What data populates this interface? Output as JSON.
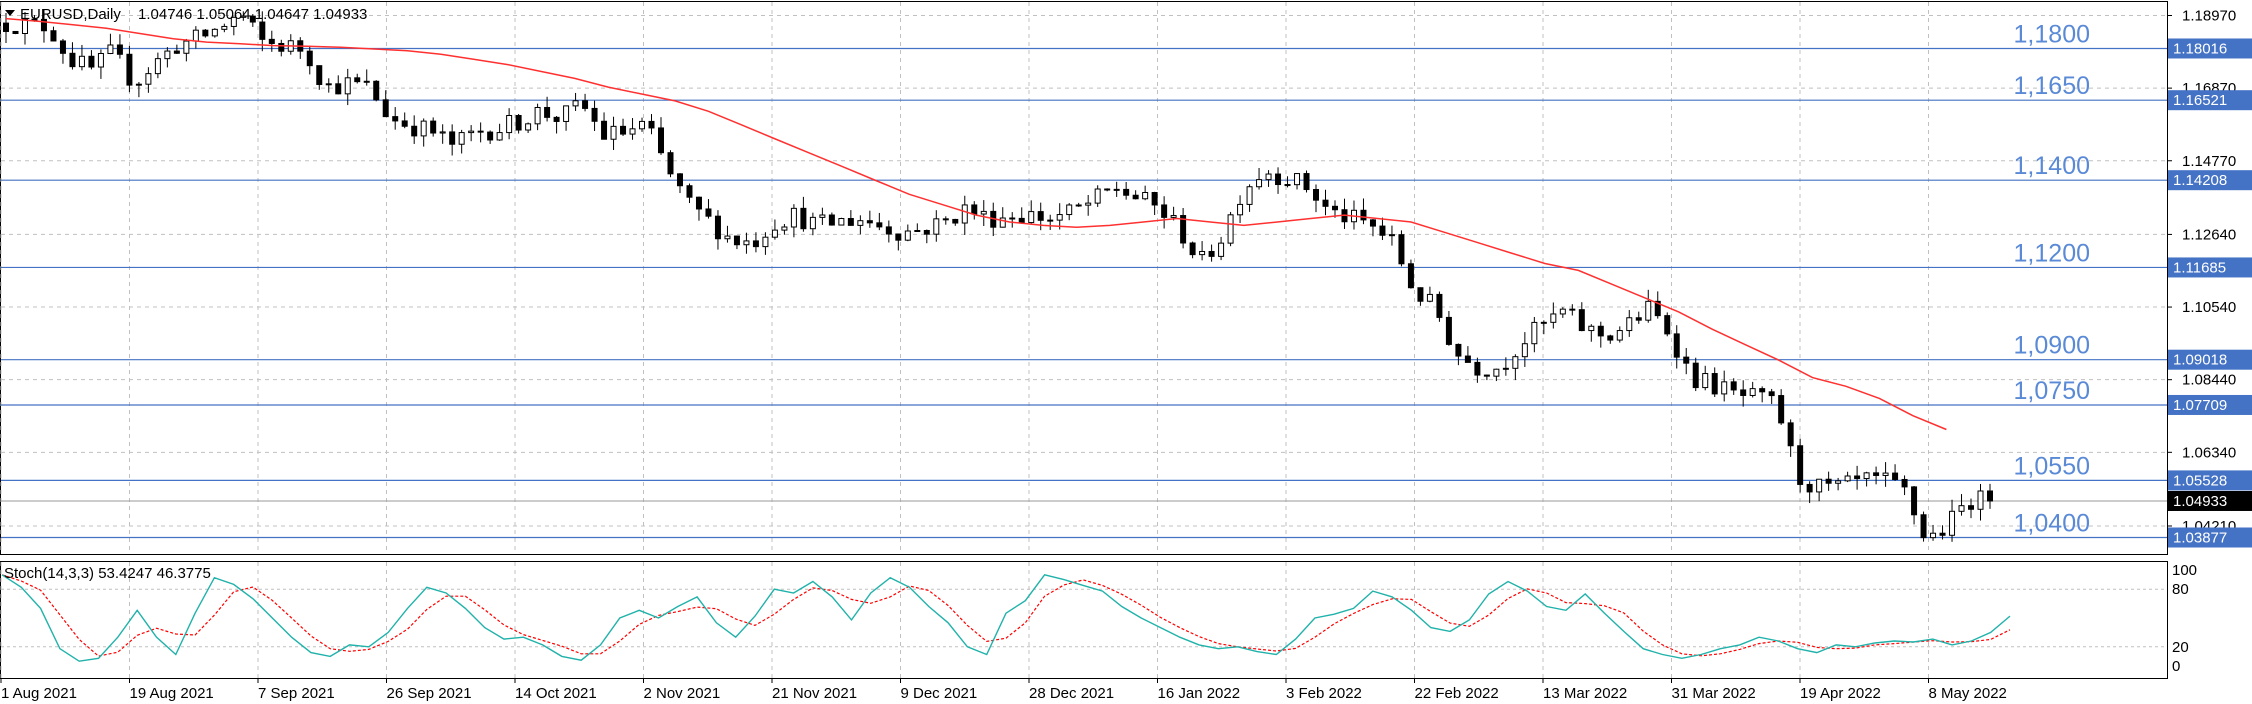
{
  "header": {
    "symbol_line": "EURUSD,Daily",
    "ohlc": "1.04746 1.05064 1.04647 1.04933",
    "menu_icon": "triangle-down-icon"
  },
  "indicator": {
    "label": "Stoch(14,3,3) 53.4247 46.3775",
    "main_color": "#20b2aa",
    "signal_color": "#ff0000",
    "ticks": [
      "100",
      "80",
      "20",
      "0"
    ],
    "levels": [
      80,
      20
    ]
  },
  "colors": {
    "level_line": "#4472c4",
    "level_text": "#5a8ad6",
    "ma_line": "#ff3030",
    "price_tag_bg": "#000000",
    "grid": "#c0c0c0"
  },
  "chart_data": [
    {
      "type": "candlestick",
      "symbol": "EURUSD",
      "timeframe": "Daily",
      "ylim": [
        1.034,
        1.1936
      ],
      "y_tick_labels": [
        "1.18970",
        "1.16870",
        "1.14770",
        "1.12640",
        "1.10540",
        "1.08440",
        "1.06340",
        "1.04210"
      ],
      "x_tick_labels": [
        "1 Aug 2021",
        "19 Aug 2021",
        "7 Sep 2021",
        "26 Sep 2021",
        "14 Oct 2021",
        "2 Nov 2021",
        "21 Nov 2021",
        "9 Dec 2021",
        "28 Dec 2021",
        "16 Jan 2022",
        "3 Feb 2022",
        "22 Feb 2022",
        "13 Mar 2022",
        "31 Mar 2022",
        "19 Apr 2022",
        "8 May 2022"
      ],
      "grid": true,
      "levels": [
        {
          "value": 1.18016,
          "label": "1,1800",
          "tag": "1.18016"
        },
        {
          "value": 1.16521,
          "label": "1,1650",
          "tag": "1.16521"
        },
        {
          "value": 1.14208,
          "label": "1,1400",
          "tag": "1.14208"
        },
        {
          "value": 1.11685,
          "label": "1,1200",
          "tag": "1.11685"
        },
        {
          "value": 1.09018,
          "label": "1,0900",
          "tag": "1.09018"
        },
        {
          "value": 1.07709,
          "label": "1,0750",
          "tag": "1.07709"
        },
        {
          "value": 1.05528,
          "label": "1,0550",
          "tag": "1.05528"
        },
        {
          "value": 1.03877,
          "label": "1,0400",
          "tag": "1.03877"
        }
      ],
      "current_price": {
        "value": 1.04933,
        "tag": "1.04933"
      },
      "price_path": [
        1.1875,
        1.187,
        1.1866,
        1.177,
        1.174,
        1.179,
        1.17,
        1.176,
        1.181,
        1.183,
        1.186,
        1.19,
        1.182,
        1.181,
        1.18,
        1.169,
        1.17,
        1.169,
        1.16,
        1.158,
        1.156,
        1.152,
        1.156,
        1.157,
        1.159,
        1.162,
        1.16,
        1.164,
        1.155,
        1.156,
        1.158,
        1.145,
        1.135,
        1.13,
        1.125,
        1.124,
        1.13,
        1.132,
        1.129,
        1.13,
        1.131,
        1.129,
        1.127,
        1.128,
        1.13,
        1.134,
        1.131,
        1.132,
        1.132,
        1.131,
        1.133,
        1.136,
        1.14,
        1.137,
        1.134,
        1.128,
        1.118,
        1.126,
        1.14,
        1.145,
        1.143,
        1.14,
        1.133,
        1.131,
        1.129,
        1.124,
        1.11,
        1.105,
        1.092,
        1.088,
        1.088,
        1.095,
        1.1,
        1.104,
        1.099,
        1.097,
        1.1,
        1.105,
        1.098,
        1.085,
        1.083,
        1.08,
        1.079,
        1.077,
        1.056,
        1.053,
        1.053,
        1.055,
        1.055,
        1.052,
        1.038,
        1.042,
        1.05,
        1.049
      ],
      "moving_average": [
        1.1888,
        1.188,
        1.187,
        1.186,
        1.1845,
        1.183,
        1.182,
        1.1815,
        1.181,
        1.1808,
        1.1805,
        1.18,
        1.1795,
        1.1785,
        1.177,
        1.1755,
        1.1735,
        1.1715,
        1.169,
        1.167,
        1.165,
        1.162,
        1.158,
        1.154,
        1.15,
        1.146,
        1.142,
        1.138,
        1.135,
        1.132,
        1.13,
        1.129,
        1.1285,
        1.129,
        1.13,
        1.131,
        1.13,
        1.129,
        1.13,
        1.131,
        1.132,
        1.131,
        1.13,
        1.127,
        1.124,
        1.121,
        1.118,
        1.116,
        1.112,
        1.108,
        1.104,
        1.099,
        1.0945,
        1.09,
        1.085,
        1.0825,
        1.079,
        1.074,
        1.07
      ],
      "ma_end_fraction": 0.978
    },
    {
      "type": "line",
      "indicator": "Stochastic (14,3,3)",
      "ylim": [
        0,
        100
      ],
      "main_value": 53.4247,
      "signal_value": 46.3775,
      "main": [
        95,
        82,
        60,
        18,
        5,
        8,
        30,
        58,
        30,
        12,
        55,
        92,
        85,
        70,
        50,
        30,
        14,
        10,
        22,
        20,
        35,
        60,
        82,
        76,
        60,
        40,
        28,
        30,
        22,
        10,
        6,
        22,
        50,
        58,
        50,
        62,
        72,
        45,
        30,
        52,
        80,
        76,
        88,
        72,
        48,
        76,
        92,
        82,
        62,
        45,
        20,
        12,
        55,
        68,
        95,
        90,
        84,
        78,
        62,
        50,
        40,
        30,
        22,
        18,
        20,
        15,
        12,
        28,
        50,
        54,
        60,
        78,
        72,
        58,
        40,
        36,
        48,
        75,
        88,
        78,
        62,
        58,
        75,
        55,
        36,
        18,
        12,
        8,
        12,
        18,
        22,
        30,
        26,
        18,
        14,
        22,
        20,
        24,
        26,
        25,
        28,
        22,
        26,
        35,
        52
      ]
    }
  ]
}
